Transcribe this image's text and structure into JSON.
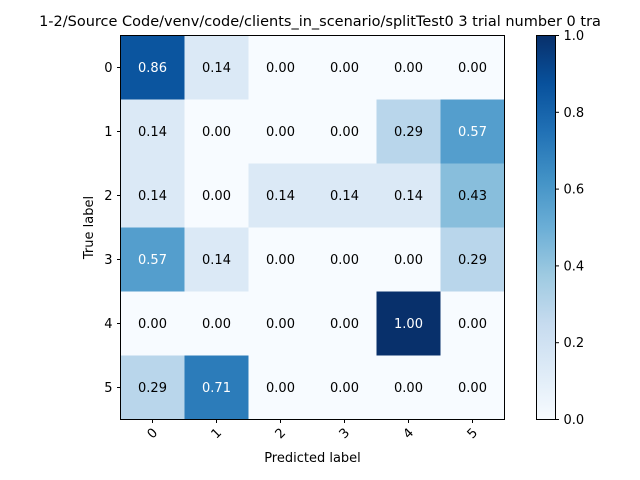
{
  "chart_data": {
    "type": "heatmap",
    "title": "1-2/Source Code/venv/code/clients_in_scenario/splitTest0 3 trial number 0 tra",
    "xlabel": "Predicted label",
    "ylabel": "True label",
    "x_categories": [
      "0",
      "1",
      "2",
      "3",
      "4",
      "5"
    ],
    "y_categories": [
      "0",
      "1",
      "2",
      "3",
      "4",
      "5"
    ],
    "values": [
      [
        0.86,
        0.14,
        0.0,
        0.0,
        0.0,
        0.0
      ],
      [
        0.14,
        0.0,
        0.0,
        0.0,
        0.29,
        0.57
      ],
      [
        0.14,
        0.0,
        0.14,
        0.14,
        0.14,
        0.43
      ],
      [
        0.57,
        0.14,
        0.0,
        0.0,
        0.0,
        0.29
      ],
      [
        0.0,
        0.0,
        0.0,
        0.0,
        1.0,
        0.0
      ],
      [
        0.29,
        0.71,
        0.0,
        0.0,
        0.0,
        0.0
      ]
    ],
    "cell_labels": [
      [
        "0.86",
        "0.14",
        "0.00",
        "0.00",
        "0.00",
        "0.00"
      ],
      [
        "0.14",
        "0.00",
        "0.00",
        "0.00",
        "0.29",
        "0.57"
      ],
      [
        "0.14",
        "0.00",
        "0.14",
        "0.14",
        "0.14",
        "0.43"
      ],
      [
        "0.57",
        "0.14",
        "0.00",
        "0.00",
        "0.00",
        "0.29"
      ],
      [
        "0.00",
        "0.00",
        "0.00",
        "0.00",
        "1.00",
        "0.00"
      ],
      [
        "0.29",
        "0.71",
        "0.00",
        "0.00",
        "0.00",
        "0.00"
      ]
    ],
    "colormap": "Blues",
    "color_range": [
      0.0,
      1.0
    ],
    "colorbar_ticks": [
      "0.0",
      "0.2",
      "0.4",
      "0.6",
      "0.8",
      "1.0"
    ],
    "text_colors": {
      "dark": "#000000",
      "light": "#ffffff"
    }
  }
}
